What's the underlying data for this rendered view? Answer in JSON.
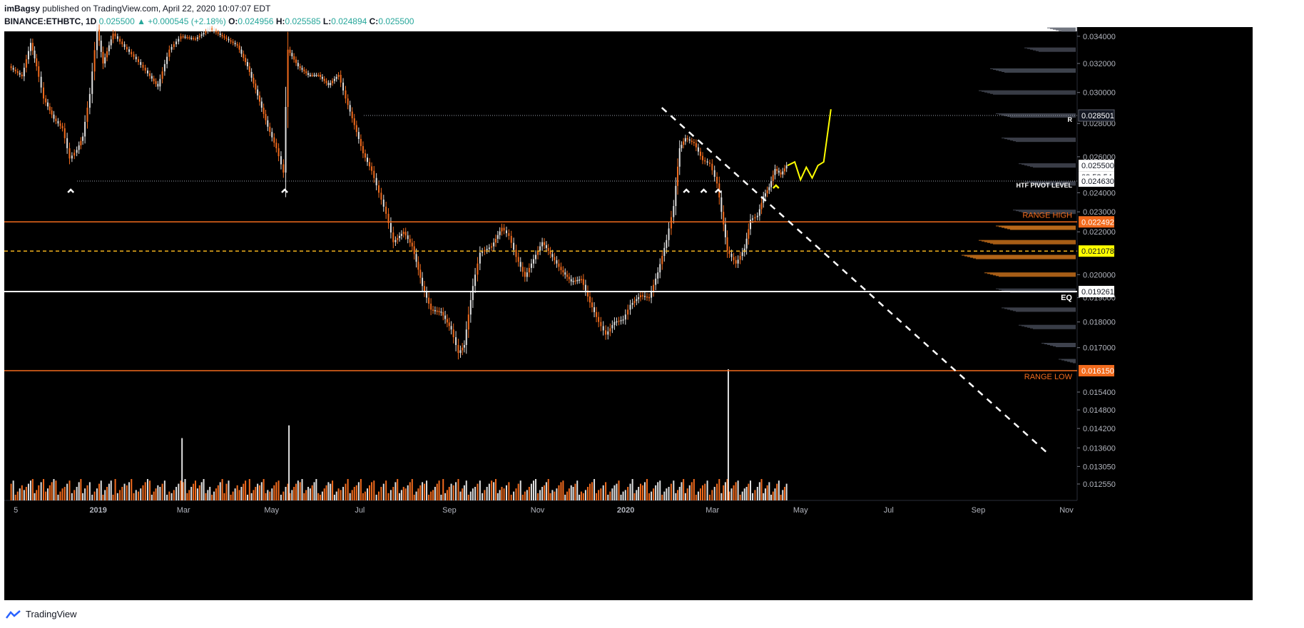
{
  "header": {
    "author": "imBagsy",
    "published": "published on TradingView.com, April 22, 2020 10:07:07 EDT",
    "symbol": "BINANCE:ETHBTC, 1D",
    "price": "0.025500",
    "change": "▲ +0.000545 (+2.18%)",
    "o_label": "O:",
    "o_val": "0.024956",
    "h_label": "H:",
    "h_val": "0.025585",
    "l_label": "L:",
    "l_val": "0.024894",
    "c_label": "C:",
    "c_val": "0.025500"
  },
  "footer": {
    "brand": "TradingView",
    "icon": "tradingview-logo-icon"
  },
  "colors": {
    "background": "#000000",
    "up": "#e0e0e0",
    "down": "#f26b1d",
    "range_line": "#f26b1d",
    "eq_line": "#ffffff",
    "mid_line": "#f2b21d",
    "trendline": "#ffffff",
    "projection": "#ffff00",
    "volume_profile_up": "#4a4f5c",
    "volume_profile_down": "#d97a1e"
  },
  "chart_data": {
    "type": "candlestick",
    "symbol": "BINANCE:ETHBTC",
    "interval": "1D",
    "x_ticks": [
      "5",
      "2019",
      "Mar",
      "May",
      "Jul",
      "Sep",
      "Nov",
      "2020",
      "Mar",
      "May",
      "Jul",
      "Sep",
      "Nov"
    ],
    "x_tick_dates": [
      "2018-11-05",
      "2019-01-01",
      "2019-03-01",
      "2019-05-01",
      "2019-07-01",
      "2019-09-01",
      "2019-11-01",
      "2020-01-01",
      "2020-03-01",
      "2020-05-01",
      "2020-07-01",
      "2020-09-01",
      "2020-11-01"
    ],
    "y_ticks": [
      "0.034000",
      "0.032000",
      "0.030000",
      "0.028000",
      "0.026000",
      "0.024000",
      "0.023000",
      "0.022000",
      "0.020000",
      "0.019000",
      "0.018000",
      "0.017000",
      "0.015400",
      "0.014800",
      "0.014200",
      "0.013600",
      "0.013050",
      "0.012550"
    ],
    "y_tick_values": [
      0.034,
      0.032,
      0.03,
      0.028,
      0.026,
      0.024,
      0.023,
      0.022,
      0.02,
      0.019,
      0.018,
      0.017,
      0.0154,
      0.0148,
      0.0142,
      0.0136,
      0.01305,
      0.01255
    ],
    "y_range": [
      0.0121,
      0.0347
    ],
    "y_scale": "log",
    "price_tags": [
      {
        "value": "0.028501",
        "style": "dark"
      },
      {
        "value": "0.025500",
        "style": "light"
      },
      {
        "value": "09:52:54",
        "style": "light"
      },
      {
        "value": "0.024630",
        "style": "light"
      },
      {
        "value": "0.022492",
        "style": "orange"
      },
      {
        "value": "0.021078",
        "style": "yellow"
      },
      {
        "value": "0.019261",
        "style": "light"
      },
      {
        "value": "0.016150",
        "style": "orange"
      }
    ],
    "levels": [
      {
        "label": "R",
        "value": 0.028501,
        "style": "dotted"
      },
      {
        "label": "HTF PIVOT LEVEL",
        "value": 0.02463,
        "style": "dotted"
      },
      {
        "label": "RANGE HIGH",
        "value": 0.022492,
        "style": "solid-orange"
      },
      {
        "label": "",
        "value": 0.021078,
        "style": "dashed-yellow"
      },
      {
        "label": "EQ",
        "value": 0.019261,
        "style": "solid-white"
      },
      {
        "label": "RANGE LOW",
        "value": 0.01615,
        "style": "solid-orange"
      }
    ],
    "closes": [
      [
        "2018-11-01",
        0.0318
      ],
      [
        "2018-11-10",
        0.0311
      ],
      [
        "2018-11-16",
        0.0335
      ],
      [
        "2018-11-20",
        0.0318
      ],
      [
        "2018-11-25",
        0.0296
      ],
      [
        "2018-12-02",
        0.0283
      ],
      [
        "2018-12-08",
        0.0277
      ],
      [
        "2018-12-13",
        0.0259
      ],
      [
        "2018-12-18",
        0.0264
      ],
      [
        "2018-12-22",
        0.0272
      ],
      [
        "2018-12-27",
        0.0299
      ],
      [
        "2019-01-01",
        0.0345
      ],
      [
        "2019-01-05",
        0.032
      ],
      [
        "2019-01-12",
        0.0342
      ],
      [
        "2019-01-20",
        0.0332
      ],
      [
        "2019-01-28",
        0.0323
      ],
      [
        "2019-02-05",
        0.0313
      ],
      [
        "2019-02-12",
        0.0304
      ],
      [
        "2019-02-20",
        0.033
      ],
      [
        "2019-02-28",
        0.034
      ],
      [
        "2019-03-10",
        0.0338
      ],
      [
        "2019-03-20",
        0.0346
      ],
      [
        "2019-03-30",
        0.0339
      ],
      [
        "2019-04-08",
        0.0333
      ],
      [
        "2019-04-15",
        0.0318
      ],
      [
        "2019-04-22",
        0.0298
      ],
      [
        "2019-04-29",
        0.0278
      ],
      [
        "2019-05-05",
        0.0265
      ],
      [
        "2019-05-10",
        0.0251
      ],
      [
        "2019-05-13",
        0.033
      ],
      [
        "2019-05-20",
        0.0318
      ],
      [
        "2019-05-27",
        0.0312
      ],
      [
        "2019-06-03",
        0.0312
      ],
      [
        "2019-06-10",
        0.0305
      ],
      [
        "2019-06-17",
        0.0312
      ],
      [
        "2019-06-22",
        0.0296
      ],
      [
        "2019-06-28",
        0.0279
      ],
      [
        "2019-07-04",
        0.0262
      ],
      [
        "2019-07-10",
        0.0252
      ],
      [
        "2019-07-15",
        0.024
      ],
      [
        "2019-07-20",
        0.0229
      ],
      [
        "2019-07-25",
        0.0215
      ],
      [
        "2019-08-01",
        0.022
      ],
      [
        "2019-08-07",
        0.0213
      ],
      [
        "2019-08-14",
        0.0195
      ],
      [
        "2019-08-20",
        0.0185
      ],
      [
        "2019-08-27",
        0.0184
      ],
      [
        "2019-09-03",
        0.0177
      ],
      [
        "2019-09-08",
        0.0168
      ],
      [
        "2019-09-12",
        0.0171
      ],
      [
        "2019-09-18",
        0.0195
      ],
      [
        "2019-09-23",
        0.021
      ],
      [
        "2019-10-01",
        0.0213
      ],
      [
        "2019-10-08",
        0.0222
      ],
      [
        "2019-10-13",
        0.0218
      ],
      [
        "2019-10-18",
        0.0208
      ],
      [
        "2019-10-24",
        0.0199
      ],
      [
        "2019-10-30",
        0.0207
      ],
      [
        "2019-11-05",
        0.0215
      ],
      [
        "2019-11-12",
        0.0208
      ],
      [
        "2019-11-18",
        0.0202
      ],
      [
        "2019-11-25",
        0.0197
      ],
      [
        "2019-12-02",
        0.0198
      ],
      [
        "2019-12-08",
        0.0188
      ],
      [
        "2019-12-14",
        0.018
      ],
      [
        "2019-12-19",
        0.0175
      ],
      [
        "2019-12-25",
        0.018
      ],
      [
        "2019-12-31",
        0.0181
      ],
      [
        "2020-01-05",
        0.0187
      ],
      [
        "2020-01-12",
        0.0191
      ],
      [
        "2020-01-18",
        0.019
      ],
      [
        "2020-01-24",
        0.0201
      ],
      [
        "2020-01-30",
        0.0216
      ],
      [
        "2020-02-04",
        0.0233
      ],
      [
        "2020-02-08",
        0.0265
      ],
      [
        "2020-02-12",
        0.0271
      ],
      [
        "2020-02-18",
        0.0268
      ],
      [
        "2020-02-24",
        0.0258
      ],
      [
        "2020-02-29",
        0.0256
      ],
      [
        "2020-03-05",
        0.0245
      ],
      [
        "2020-03-08",
        0.023
      ],
      [
        "2020-03-12",
        0.0211
      ],
      [
        "2020-03-18",
        0.0205
      ],
      [
        "2020-03-24",
        0.0212
      ],
      [
        "2020-03-28",
        0.0226
      ],
      [
        "2020-04-02",
        0.0228
      ],
      [
        "2020-04-06",
        0.0238
      ],
      [
        "2020-04-10",
        0.0243
      ],
      [
        "2020-04-14",
        0.0253
      ],
      [
        "2020-04-18",
        0.025
      ],
      [
        "2020-04-22",
        0.0255
      ]
    ],
    "projection": [
      [
        "2020-04-22",
        0.0255
      ],
      [
        "2020-04-27",
        0.0257
      ],
      [
        "2020-05-01",
        0.0247
      ],
      [
        "2020-05-05",
        0.0254
      ],
      [
        "2020-05-09",
        0.0248
      ],
      [
        "2020-05-13",
        0.0255
      ],
      [
        "2020-05-17",
        0.0257
      ],
      [
        "2020-05-22",
        0.0289
      ]
    ],
    "trendline": [
      [
        "2020-01-26",
        0.029
      ],
      [
        "2020-10-20",
        0.0134
      ]
    ],
    "pivot_markers": [
      "2018-12-13",
      "2019-05-10",
      "2020-02-12",
      "2020-02-24",
      "2020-03-05",
      "2020-04-14"
    ],
    "volume_spikes": [
      [
        "2020-03-12",
        0.0162
      ],
      [
        "2019-05-13",
        0.0143
      ],
      [
        "2019-02-28",
        0.0139
      ]
    ],
    "volume_profile": [
      [
        0.0345,
        0.25,
        "up"
      ],
      [
        0.033,
        0.45,
        "up"
      ],
      [
        0.0315,
        0.75,
        "up"
      ],
      [
        0.03,
        0.85,
        "up"
      ],
      [
        0.0285,
        0.7,
        "up"
      ],
      [
        0.027,
        0.65,
        "up"
      ],
      [
        0.0255,
        0.5,
        "up"
      ],
      [
        0.0245,
        0.45,
        "up"
      ],
      [
        0.023,
        0.55,
        "up"
      ],
      [
        0.0222,
        0.7,
        "up"
      ],
      [
        0.0215,
        0.85,
        "up"
      ],
      [
        0.0208,
        1.0,
        "up"
      ],
      [
        0.02,
        0.8,
        "up"
      ],
      [
        0.0193,
        0.7,
        "up"
      ],
      [
        0.0185,
        0.65,
        "up"
      ],
      [
        0.0178,
        0.5,
        "up"
      ],
      [
        0.0171,
        0.3,
        "up"
      ],
      [
        0.0165,
        0.15,
        "up"
      ]
    ]
  }
}
